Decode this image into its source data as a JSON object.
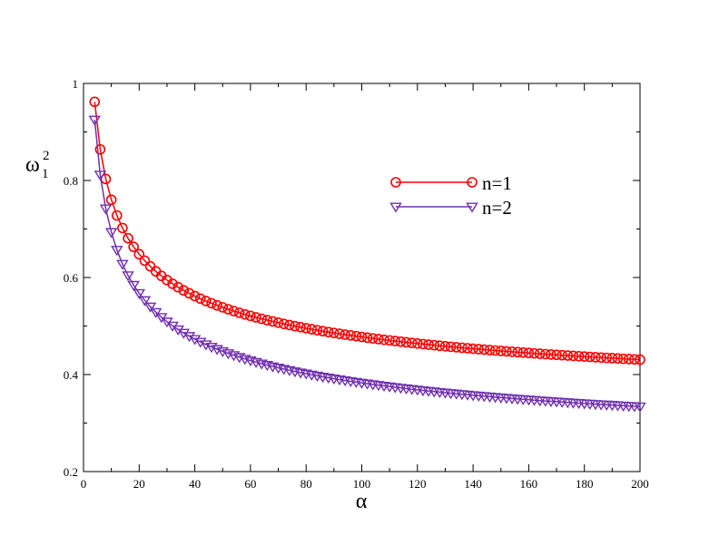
{
  "chart_data": {
    "type": "line",
    "title": "",
    "xlabel": "α",
    "ylabel": "ω",
    "ylabel_subscript": "1",
    "ylabel_superscript": "2",
    "xlim": [
      0,
      200
    ],
    "ylim": [
      0.2,
      1.0
    ],
    "x_ticks": [
      0,
      20,
      40,
      60,
      80,
      100,
      120,
      140,
      160,
      180,
      200
    ],
    "y_ticks": [
      0.2,
      0.4,
      0.6,
      0.8,
      1.0
    ],
    "x_tick_labels": [
      "0",
      "20",
      "40",
      "60",
      "80",
      "100",
      "120",
      "140",
      "160",
      "180",
      "200"
    ],
    "y_tick_labels": [
      "0.2",
      "0.4",
      "0.6",
      "0.8",
      "1"
    ],
    "grid": false,
    "legend_position": "upper-right",
    "series": [
      {
        "name": "n=1",
        "color": "#ff0000",
        "marker": "circle",
        "curve": {
          "a": 0.275,
          "b": 0.275,
          "c": -0.165
        },
        "x_start": 4,
        "x_end": 200,
        "x_step": 2
      },
      {
        "name": "n=2",
        "color": "#7030b0",
        "marker": "triangle-down",
        "curve": {
          "a": 0.185,
          "b": 0.295,
          "c": -0.2
        },
        "x_start": 4,
        "x_end": 200,
        "x_step": 2
      }
    ]
  }
}
